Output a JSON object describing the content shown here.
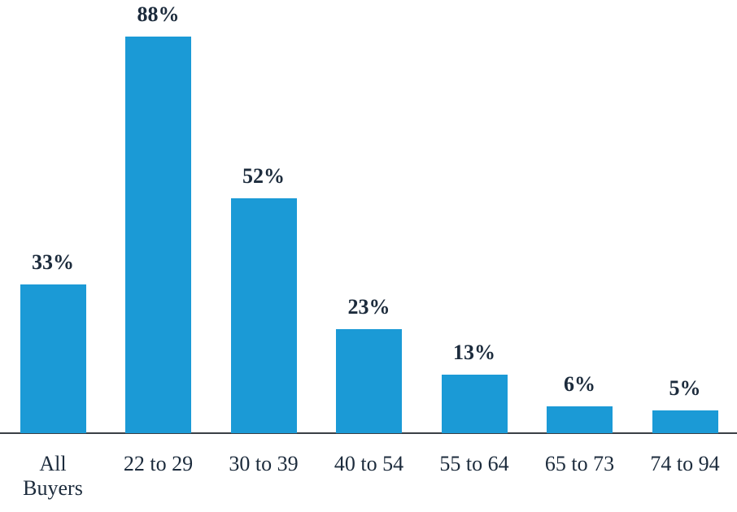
{
  "chart_data": {
    "type": "bar",
    "categories": [
      "All Buyers",
      "22 to 29",
      "30 to 39",
      "40 to 54",
      "55 to 64",
      "65 to 73",
      "74 to 94"
    ],
    "values": [
      33,
      88,
      52,
      23,
      13,
      6,
      5
    ],
    "value_labels": [
      "33%",
      "88%",
      "52%",
      "23%",
      "13%",
      "6%",
      "5%"
    ],
    "color": "#1b9ad6"
  }
}
